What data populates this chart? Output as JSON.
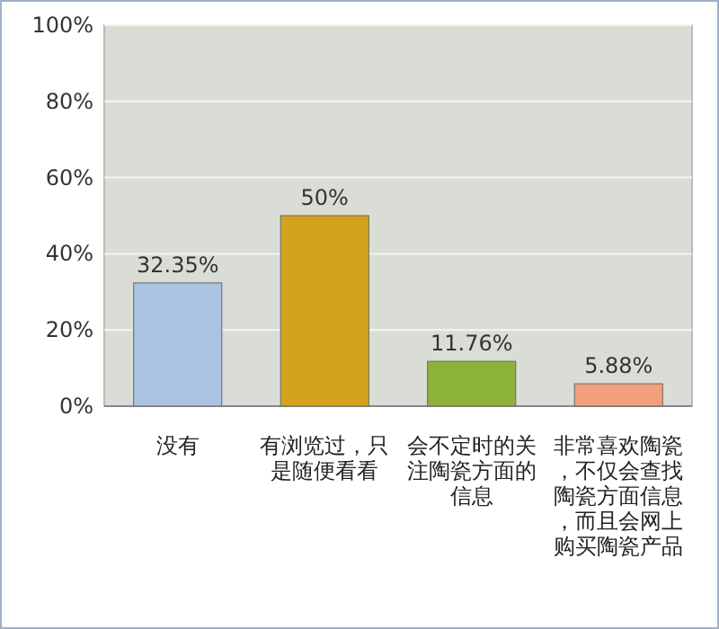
{
  "chart_data": {
    "type": "bar",
    "categories": [
      "没有",
      "有浏览过，只是随便看看",
      "会不定时的关注陶瓷方面的信息",
      "非常喜欢陶瓷，不仅会查找陶瓷方面信息，而且会网上购买陶瓷产品"
    ],
    "values": [
      32.35,
      50,
      11.76,
      5.88
    ],
    "colors": [
      "#a9c3e0",
      "#d4a21c",
      "#8db23a",
      "#f0a07a"
    ],
    "value_labels": [
      "32.35%",
      "50%",
      "11.76%",
      "5.88%"
    ],
    "ylim": [
      0,
      100
    ],
    "yticks": [
      {
        "value": 0,
        "label": "0%"
      },
      {
        "value": 20,
        "label": "20%"
      },
      {
        "value": 40,
        "label": "40%"
      },
      {
        "value": 60,
        "label": "60%"
      },
      {
        "value": 80,
        "label": "80%"
      },
      {
        "value": 100,
        "label": "100%"
      }
    ],
    "grid": "y"
  }
}
